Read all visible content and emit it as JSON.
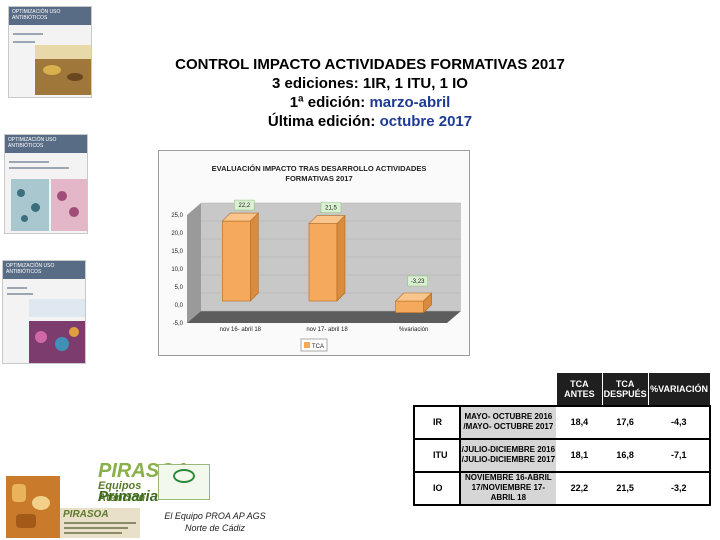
{
  "header": {
    "title": "CONTROL IMPACTO ACTIVIDADES FORMATIVAS 2017",
    "editions": "3 ediciones: 1IR, 1 ITU, 1 IO",
    "first_label": "1ª edición: ",
    "first_value": "marzo-abril",
    "last_label": "Última edición: ",
    "last_value": "octubre 2017"
  },
  "thumbnails": [
    {
      "heading": "OPTIMIZACIÓN USO ANTIBIÓTICOS"
    },
    {
      "heading": "OPTIMIZACIÓN USO ANTIBIÓTICOS"
    },
    {
      "heading": "OPTIMIZACIÓN USO ANTIBIÓTICOS"
    }
  ],
  "chart_data": {
    "type": "bar",
    "title": "EVALUACIÓN IMPACTO TRAS DESARROLLO ACTIVIDADES FORMATIVAS 2017",
    "categories": [
      "nov 16- abril 18",
      "nov 17- abril 18",
      "%variación"
    ],
    "series": [
      {
        "name": "TCA",
        "values": [
          22.2,
          21.5,
          -3.23
        ]
      }
    ],
    "data_labels": [
      "22,2",
      "21,5",
      "-3,23"
    ],
    "y_ticks": [
      "25,0",
      "20,0",
      "15,0",
      "10,0",
      "5,0",
      "0,0",
      "-5,0"
    ],
    "ylim": [
      -5,
      25
    ],
    "legend_position": "bottom",
    "colors": {
      "bar": "#f5a95c",
      "label_bg": "#d9f0d1",
      "wall": "#c8c8c8"
    }
  },
  "table": {
    "headers": [
      "TCA ANTES",
      "TCA DESPUÉS",
      "%VARIACIÓN"
    ],
    "rows": [
      {
        "label": "IR",
        "period": "MAYO- OCTUBRE 2016 /MAYO- OCTUBRE 2017",
        "antes": "18,4",
        "despues": "17,6",
        "variacion": "-4,3"
      },
      {
        "label": "ITU",
        "period": "/JULIO-DICIEMBRE 2016 /JULIO-DICIEMBRE 2017",
        "antes": "18,1",
        "despues": "16,8",
        "variacion": "-7,1"
      },
      {
        "label": "IO",
        "period": "NOVIEMBRE 16-ABRIL 17/NOVIEMBRE 17-ABRIL 18",
        "antes": "22,2",
        "despues": "21,5",
        "variacion": "-3,2"
      }
    ]
  },
  "logo": {
    "brand": "PIRASOA",
    "sub1": "Equipos Atención",
    "sub2": "Primaria",
    "small_brand": "PIRASOA"
  },
  "footer": {
    "line1": "El Equipo PROA  AP  AGS",
    "line2": "Norte de Cádiz"
  }
}
